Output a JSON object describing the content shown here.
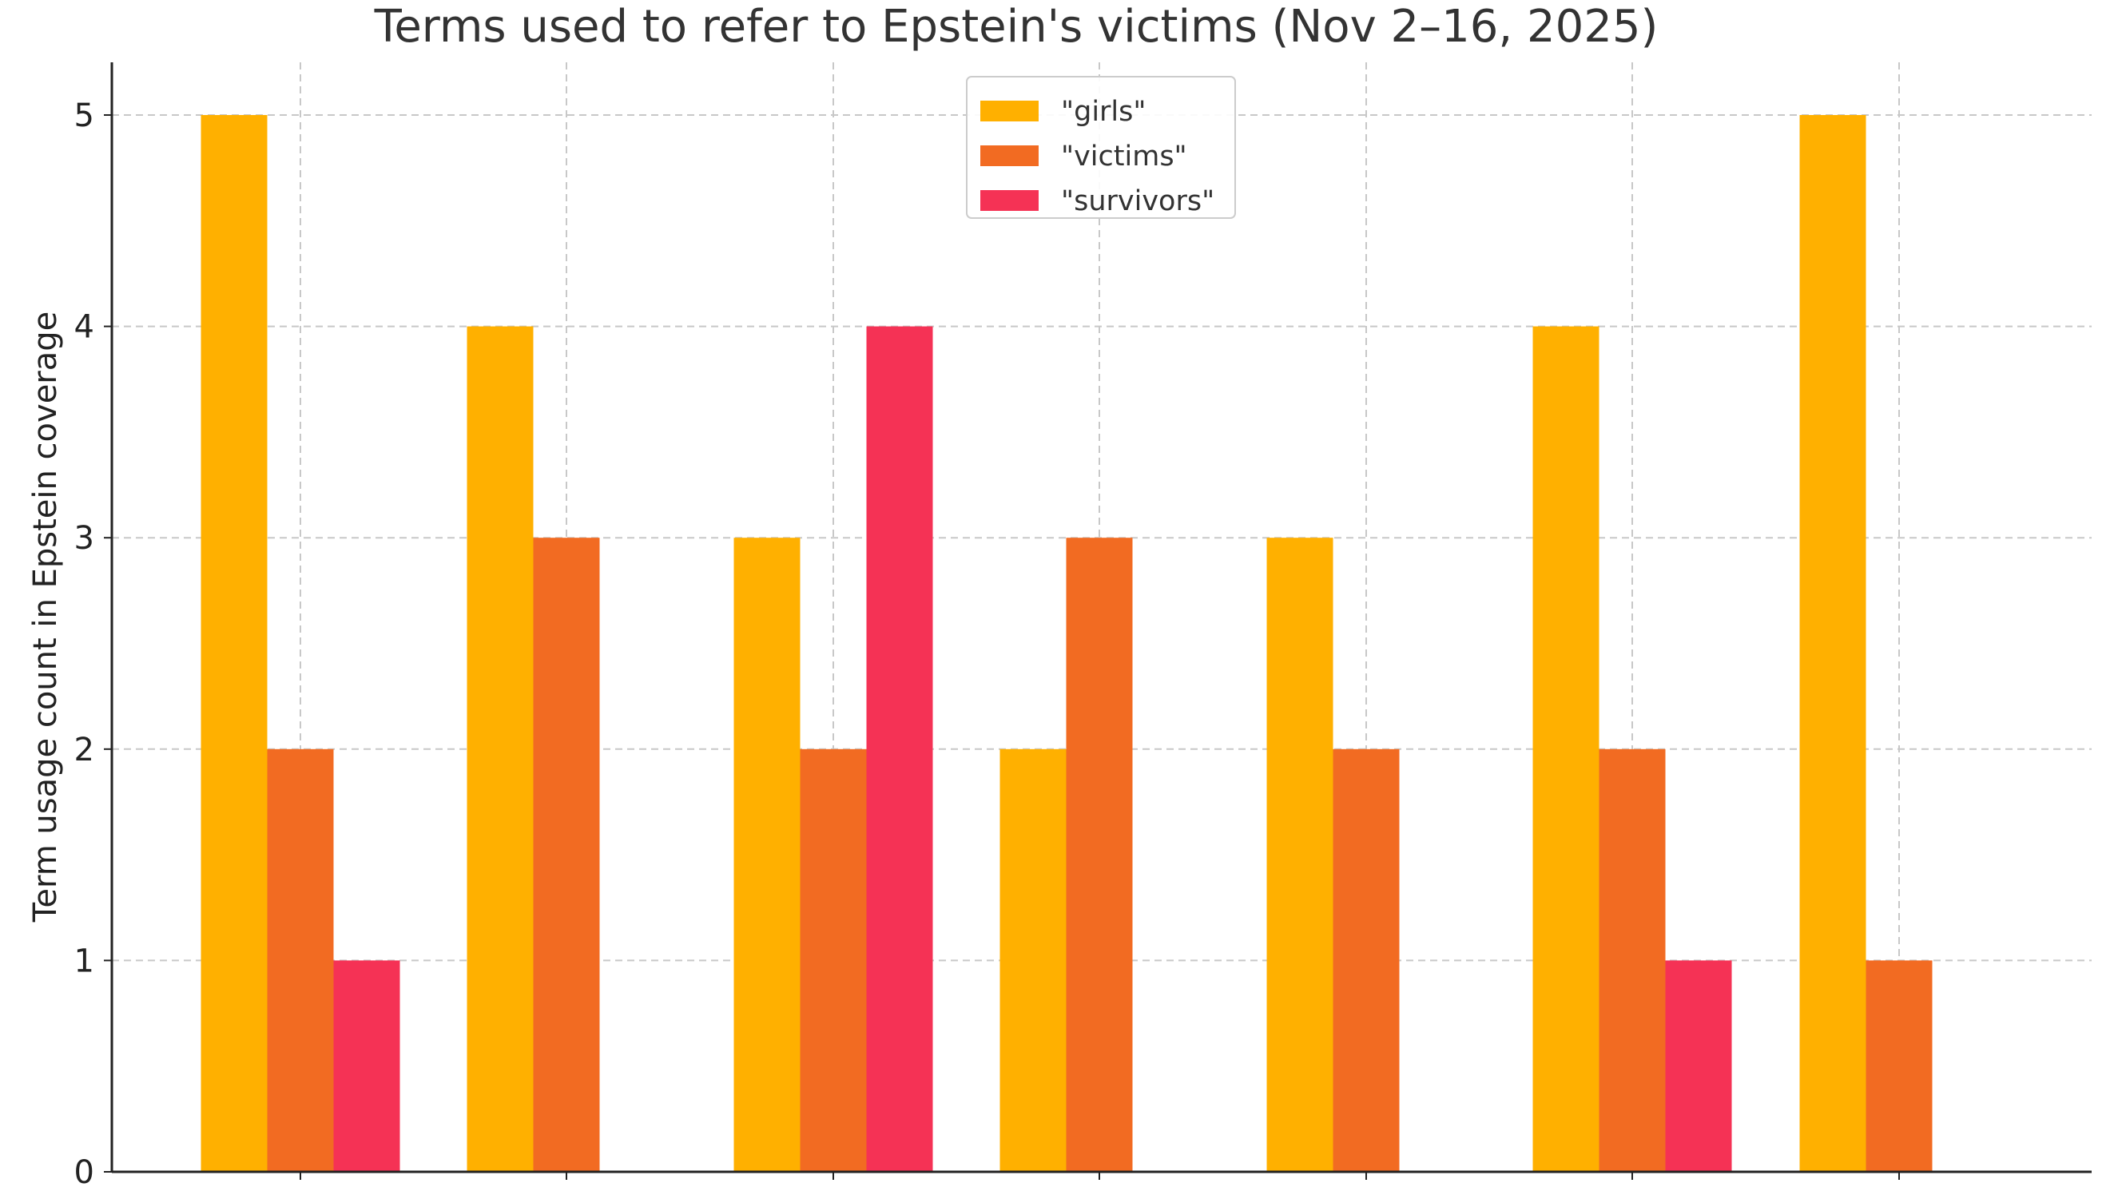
{
  "chart_data": {
    "type": "bar",
    "title": "Terms used to refer to Epstein's victims (Nov 2–16, 2025)",
    "xlabel": "",
    "ylabel": "Term usage count in Epstein coverage",
    "categories": [
      "",
      "",
      "",
      "",
      "",
      "",
      ""
    ],
    "series": [
      {
        "name": "\"girls\"",
        "color": "#FFB000",
        "values": [
          5,
          4,
          3,
          2,
          3,
          4,
          5
        ]
      },
      {
        "name": "\"victims\"",
        "color": "#F26B22",
        "values": [
          2,
          3,
          2,
          3,
          2,
          2,
          1
        ]
      },
      {
        "name": "\"survivors\"",
        "color": "#F53255",
        "values": [
          1,
          0,
          4,
          0,
          0,
          1,
          0
        ]
      }
    ],
    "ylim": [
      0,
      5.25
    ],
    "yticks": [
      0,
      1,
      2,
      3,
      4,
      5
    ],
    "ytick_labels": [
      "0",
      "1",
      "2",
      "3",
      "4",
      "5"
    ],
    "grid": true,
    "legend_position": "top-center"
  }
}
